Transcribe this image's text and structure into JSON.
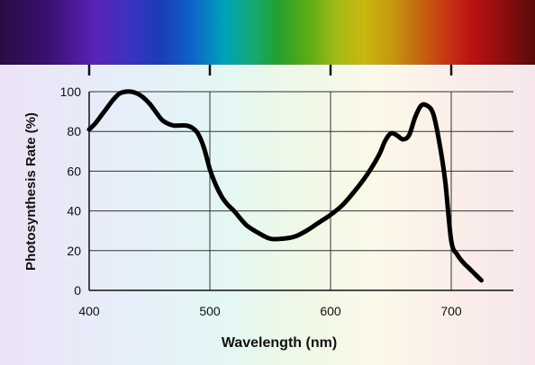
{
  "chart_data": {
    "type": "line",
    "xlabel": "Wavelength (nm)",
    "ylabel": "Photosynthesis Rate (%)",
    "xlim": [
      400,
      750
    ],
    "ylim": [
      0,
      100
    ],
    "xticks": [
      400,
      500,
      600,
      700
    ],
    "yticks": [
      0,
      20,
      40,
      60,
      80,
      100
    ],
    "grid": true,
    "series": [
      {
        "x": [
          400,
          405,
          410,
          415,
          420,
          425,
          430,
          435,
          440,
          445,
          450,
          455,
          460,
          465,
          470,
          475,
          480,
          485,
          490,
          495,
          500,
          505,
          510,
          515,
          520,
          530,
          540,
          550,
          560,
          570,
          580,
          590,
          600,
          610,
          620,
          630,
          640,
          645,
          650,
          655,
          660,
          665,
          670,
          675,
          680,
          685,
          690,
          695,
          700,
          705,
          710,
          715,
          720,
          725
        ],
        "y": [
          81,
          84,
          88,
          92,
          96,
          99,
          100,
          100,
          99,
          97,
          94,
          90,
          86,
          84,
          83,
          83,
          83,
          82,
          79,
          72,
          61,
          53,
          47,
          43,
          40,
          33,
          29,
          26,
          26,
          27,
          30,
          34,
          38,
          43,
          50,
          58,
          68,
          75,
          79,
          78,
          76,
          78,
          87,
          93,
          93,
          89,
          75,
          55,
          25,
          18,
          14,
          11,
          8,
          5
        ]
      }
    ]
  },
  "spectrum": {
    "colors": [
      "#2a0c44",
      "#3a1070",
      "#5a23b8",
      "#3c32c2",
      "#1b3bb7",
      "#0f64c8",
      "#00a2b8",
      "#12a97a",
      "#23a02e",
      "#60ad15",
      "#a3bb16",
      "#c8b80f",
      "#c79a0d",
      "#c46b10",
      "#c63a13",
      "#bb1212",
      "#8f0d0d",
      "#5a0a0a"
    ],
    "stops": [
      0,
      0.09,
      0.18,
      0.24,
      0.3,
      0.36,
      0.42,
      0.47,
      0.52,
      0.58,
      0.63,
      0.68,
      0.73,
      0.78,
      0.83,
      0.88,
      0.94,
      1
    ]
  }
}
